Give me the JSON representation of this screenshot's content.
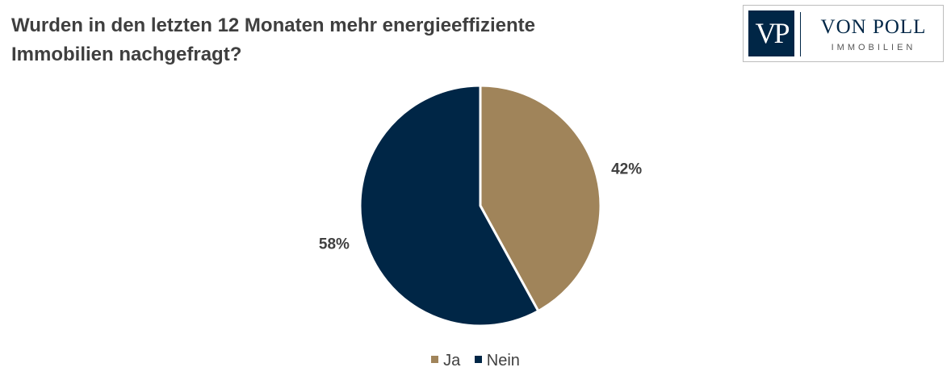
{
  "chart_data": {
    "type": "pie",
    "title_lines": [
      "Wurden in den letzten 12 Monaten mehr energieeffiziente",
      "Immobilien nachgefragt?"
    ],
    "slices": [
      {
        "name": "Ja",
        "value": 42,
        "label": "42%",
        "color": "#a0845a"
      },
      {
        "name": "Nein",
        "value": 58,
        "label": "58%",
        "color": "#002646"
      }
    ],
    "start_angle_deg": 0,
    "direction": "clockwise",
    "legend_position": "bottom"
  },
  "logo": {
    "mark": "VP",
    "name": "VON POLL",
    "sub": "IMMOBILIEN"
  }
}
